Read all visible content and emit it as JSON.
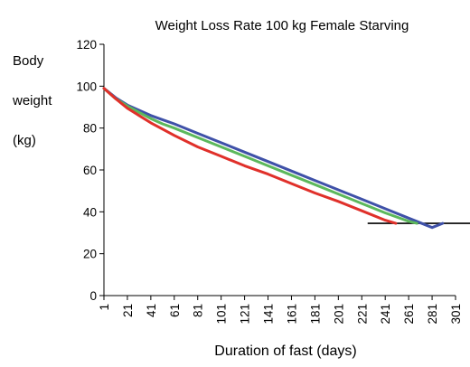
{
  "chart_data": {
    "type": "line",
    "title": "Weight Loss Rate 100 kg Female Starving",
    "ylabel_lines": [
      "Body",
      "weight",
      "(kg)"
    ],
    "xlabel": "Duration of fast (days)",
    "x_ticks": [
      "1",
      "21",
      "41",
      "61",
      "81",
      "101",
      "121",
      "141",
      "161",
      "181",
      "201",
      "221",
      "241",
      "261",
      "281",
      "301"
    ],
    "y_ticks": [
      "0",
      "20",
      "40",
      "60",
      "80",
      "100",
      "120"
    ],
    "xlim": [
      1,
      301
    ],
    "ylim": [
      0,
      120
    ],
    "grid": false,
    "legend": "none",
    "series": [
      {
        "color": "#3f51a8",
        "x": [
          1,
          11,
          21,
          31,
          41,
          51,
          61,
          81,
          101,
          121,
          141,
          161,
          181,
          201,
          221,
          241,
          261,
          281,
          290
        ],
        "y": [
          99,
          94.5,
          91,
          88.5,
          86,
          84,
          82,
          77.5,
          73,
          68.5,
          64,
          59.5,
          55,
          50.5,
          46,
          41.5,
          37,
          32.5,
          34.5
        ]
      },
      {
        "color": "#5cb85c",
        "x": [
          1,
          11,
          21,
          31,
          41,
          51,
          61,
          81,
          101,
          121,
          141,
          161,
          181,
          201,
          221,
          241,
          261,
          268
        ],
        "y": [
          99,
          94,
          90.5,
          87.5,
          84.5,
          82,
          80,
          75.5,
          71,
          66.5,
          62,
          57.5,
          53,
          48.5,
          44,
          39.5,
          35.5,
          34.5
        ]
      },
      {
        "color": "#e0302a",
        "x": [
          1,
          11,
          21,
          31,
          41,
          51,
          61,
          81,
          101,
          121,
          141,
          161,
          181,
          201,
          221,
          241,
          250
        ],
        "y": [
          99,
          94,
          89.5,
          86,
          82.5,
          79.5,
          76.5,
          71,
          66.5,
          62,
          58,
          53.5,
          49,
          45,
          40.5,
          36,
          34.5
        ]
      }
    ],
    "threshold": {
      "y": 34.5,
      "x_from": 226,
      "x_to": 331,
      "color": "#000000"
    }
  }
}
